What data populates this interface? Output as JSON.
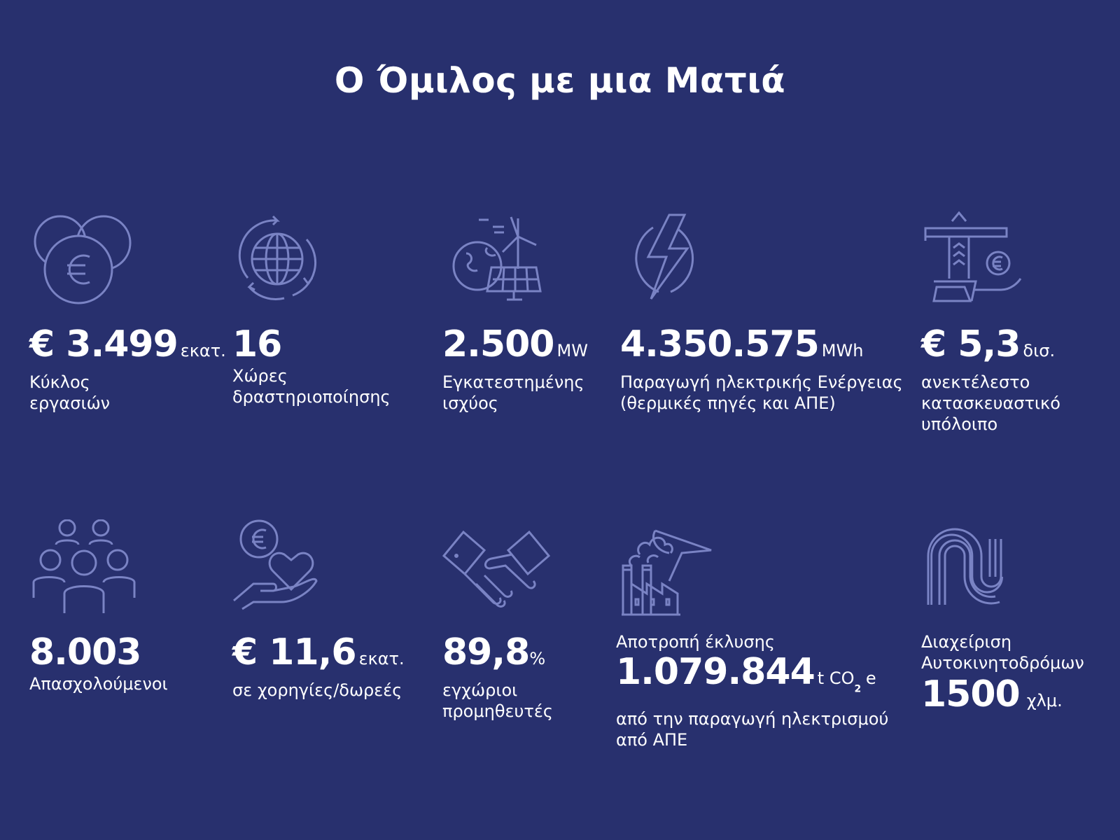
{
  "title": "Ο Όμιλος με μια Ματιά",
  "colors": {
    "background": "#28306e",
    "icon": "#7a83c4",
    "text": "#ffffff"
  },
  "stats": [
    {
      "icon": "euro-coins-icon",
      "prefix": "€ ",
      "value": "3.499",
      "unit": "εκατ.",
      "label": [
        "Κύκλος",
        "εργασιών"
      ]
    },
    {
      "icon": "globe-cycle-icon",
      "value": "16",
      "label": [
        "Χώρες",
        "δραστηριοποίησης"
      ]
    },
    {
      "icon": "renewable-energy-icon",
      "value": "2.500",
      "unit": "MW",
      "label": [
        "Εγκατεστημένης",
        "ισχύος"
      ]
    },
    {
      "icon": "lightning-icon",
      "value": "4.350.575",
      "unit": "MWh",
      "label": [
        "Παραγωγή ηλεκτρικής Ενέργειας",
        "(θερμικές πηγές και ΑΠΕ)"
      ]
    },
    {
      "icon": "construction-crane-icon",
      "prefix": "€ ",
      "value": "5,3",
      "unit": "δισ.",
      "label": [
        "ανεκτέλεστο",
        "κατασκευαστικό",
        "υπόλοιπο"
      ]
    },
    {
      "icon": "people-icon",
      "value": "8.003",
      "label": [
        "Απασχολούμενοι"
      ]
    },
    {
      "icon": "donation-heart-icon",
      "prefix": "€ ",
      "value": "11,6",
      "unit": "εκατ.",
      "label": [
        "σε χορηγίες/δωρεές"
      ]
    },
    {
      "icon": "handshake-icon",
      "value": "89,8",
      "unit": "%",
      "label": [
        "εγχώριοι",
        "προμηθευτές"
      ]
    },
    {
      "icon": "factory-emission-icon",
      "pre_label": "Αποτροπή έκλυσης",
      "value": "1.079.844",
      "unit": "t CO",
      "unit_sub": "2",
      "unit_tail": " e",
      "label": [
        "από την παραγωγή ηλεκτρισμού",
        "από ΑΠΕ"
      ]
    },
    {
      "icon": "highway-icon",
      "pre_label": [
        "Διαχείριση",
        "Αυτοκινητοδρόμων"
      ],
      "value": "1500",
      "unit": "χλμ."
    }
  ]
}
